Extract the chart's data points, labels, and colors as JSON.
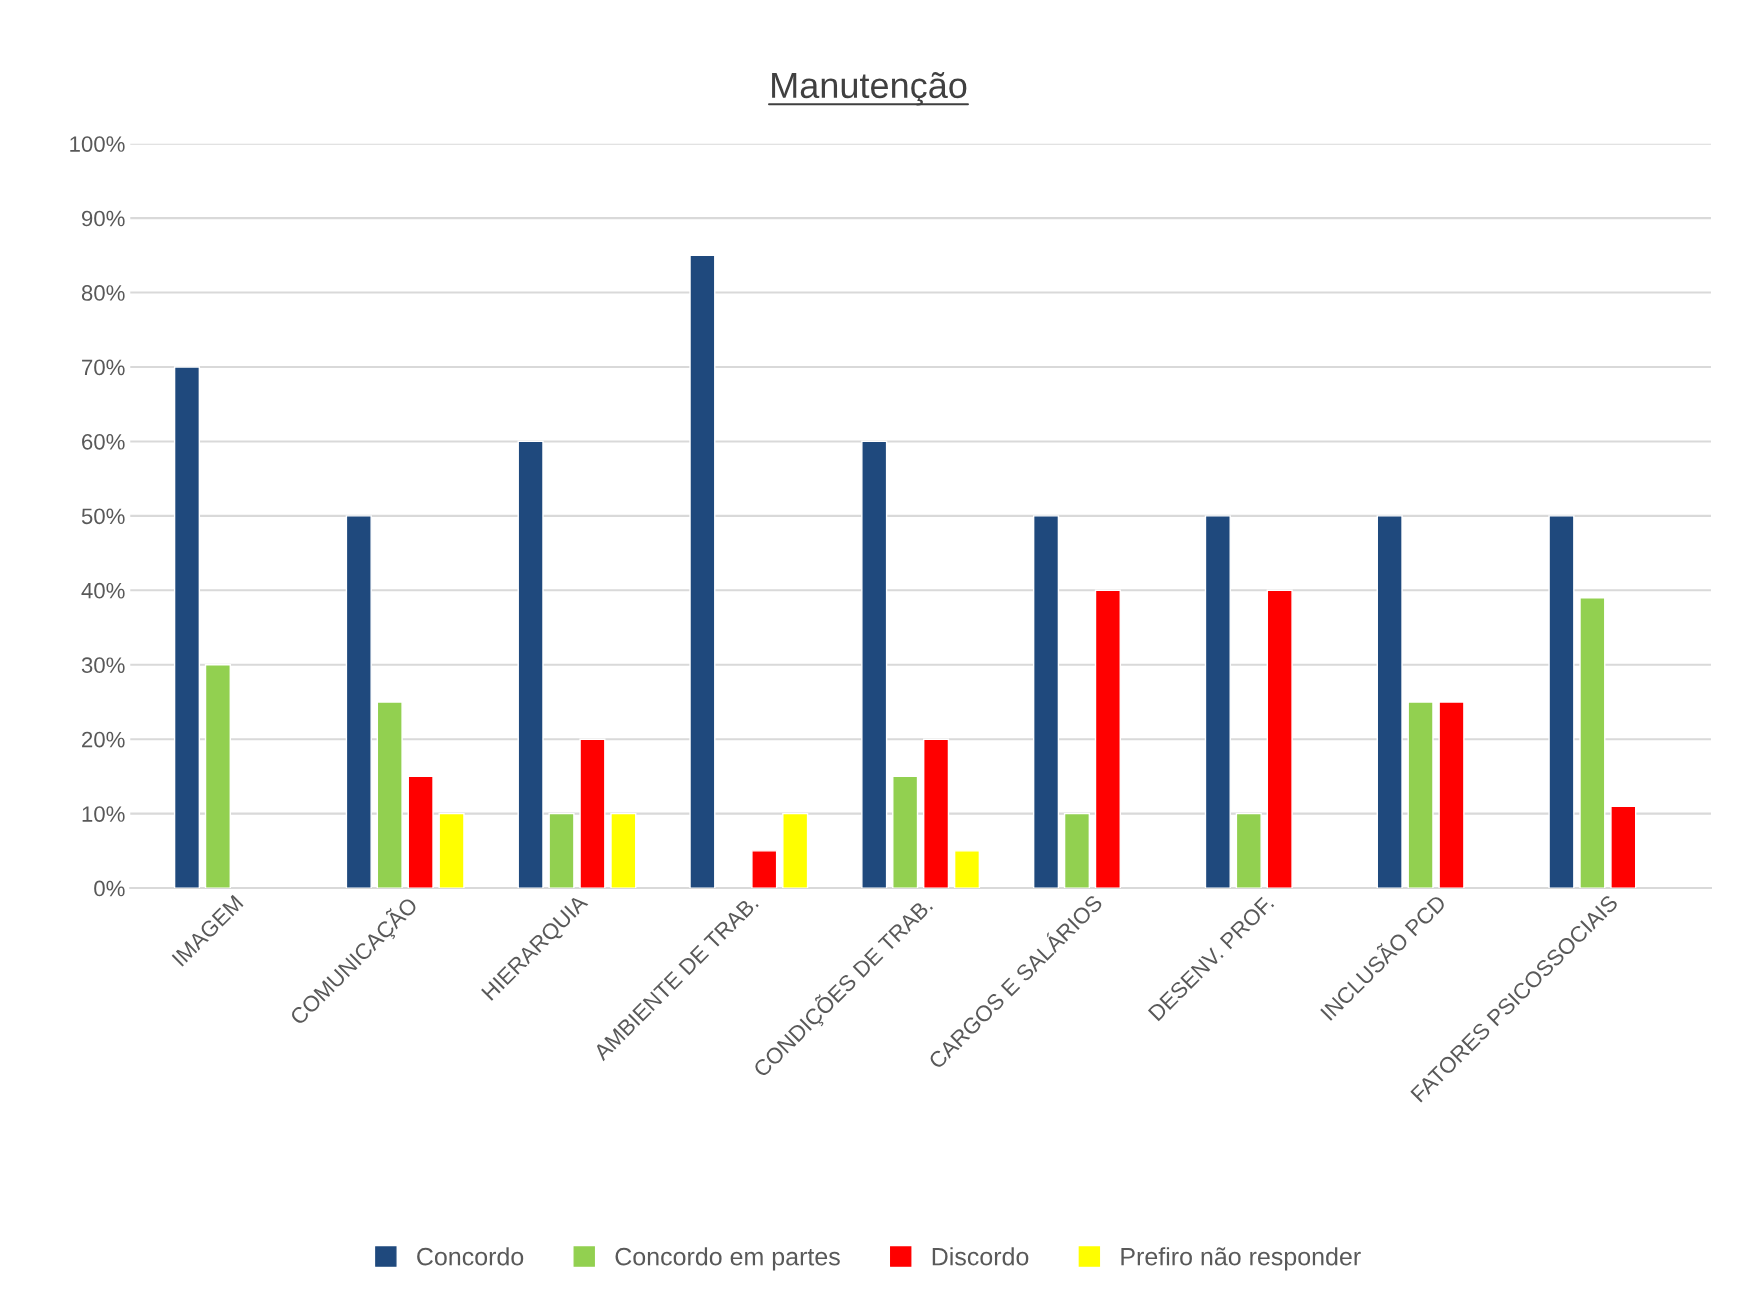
{
  "chart_data": {
    "type": "bar",
    "title": "Manutenção",
    "categories": [
      "IMAGEM",
      "COMUNICAÇÃO",
      "HIERARQUIA",
      "AMBIENTE DE TRAB.",
      "CONDIÇÕES DE TRAB.",
      "CARGOS E SALÁRIOS",
      "DESENV. PROF.",
      "INCLUSÃO PCD",
      "FATORES PSICOSSOCIAIS"
    ],
    "series": [
      {
        "name": "Concordo",
        "color": "#1f497d",
        "values": [
          70,
          50,
          60,
          85,
          60,
          50,
          50,
          50,
          50
        ]
      },
      {
        "name": "Concordo em partes",
        "color": "#92d050",
        "values": [
          30,
          25,
          10,
          null,
          15,
          10,
          10,
          25,
          39
        ]
      },
      {
        "name": "Discordo",
        "color": "#ff0000",
        "values": [
          null,
          15,
          20,
          5,
          20,
          40,
          40,
          25,
          11
        ]
      },
      {
        "name": "Prefiro não responder",
        "color": "#ffff00",
        "values": [
          null,
          10,
          10,
          10,
          5,
          null,
          null,
          null,
          null
        ]
      }
    ],
    "ylim": [
      0,
      100
    ],
    "yticks": [
      {
        "value": 0,
        "label": "0%"
      },
      {
        "value": 10,
        "label": "10%"
      },
      {
        "value": 20,
        "label": "20%"
      },
      {
        "value": 30,
        "label": "30%"
      },
      {
        "value": 40,
        "label": "40%"
      },
      {
        "value": 50,
        "label": "50%"
      },
      {
        "value": 60,
        "label": "60%"
      },
      {
        "value": 70,
        "label": "70%"
      },
      {
        "value": 80,
        "label": "80%"
      },
      {
        "value": 90,
        "label": "90%"
      },
      {
        "value": 100,
        "label": "100%"
      }
    ],
    "grid": "y",
    "legend": "bottom"
  }
}
